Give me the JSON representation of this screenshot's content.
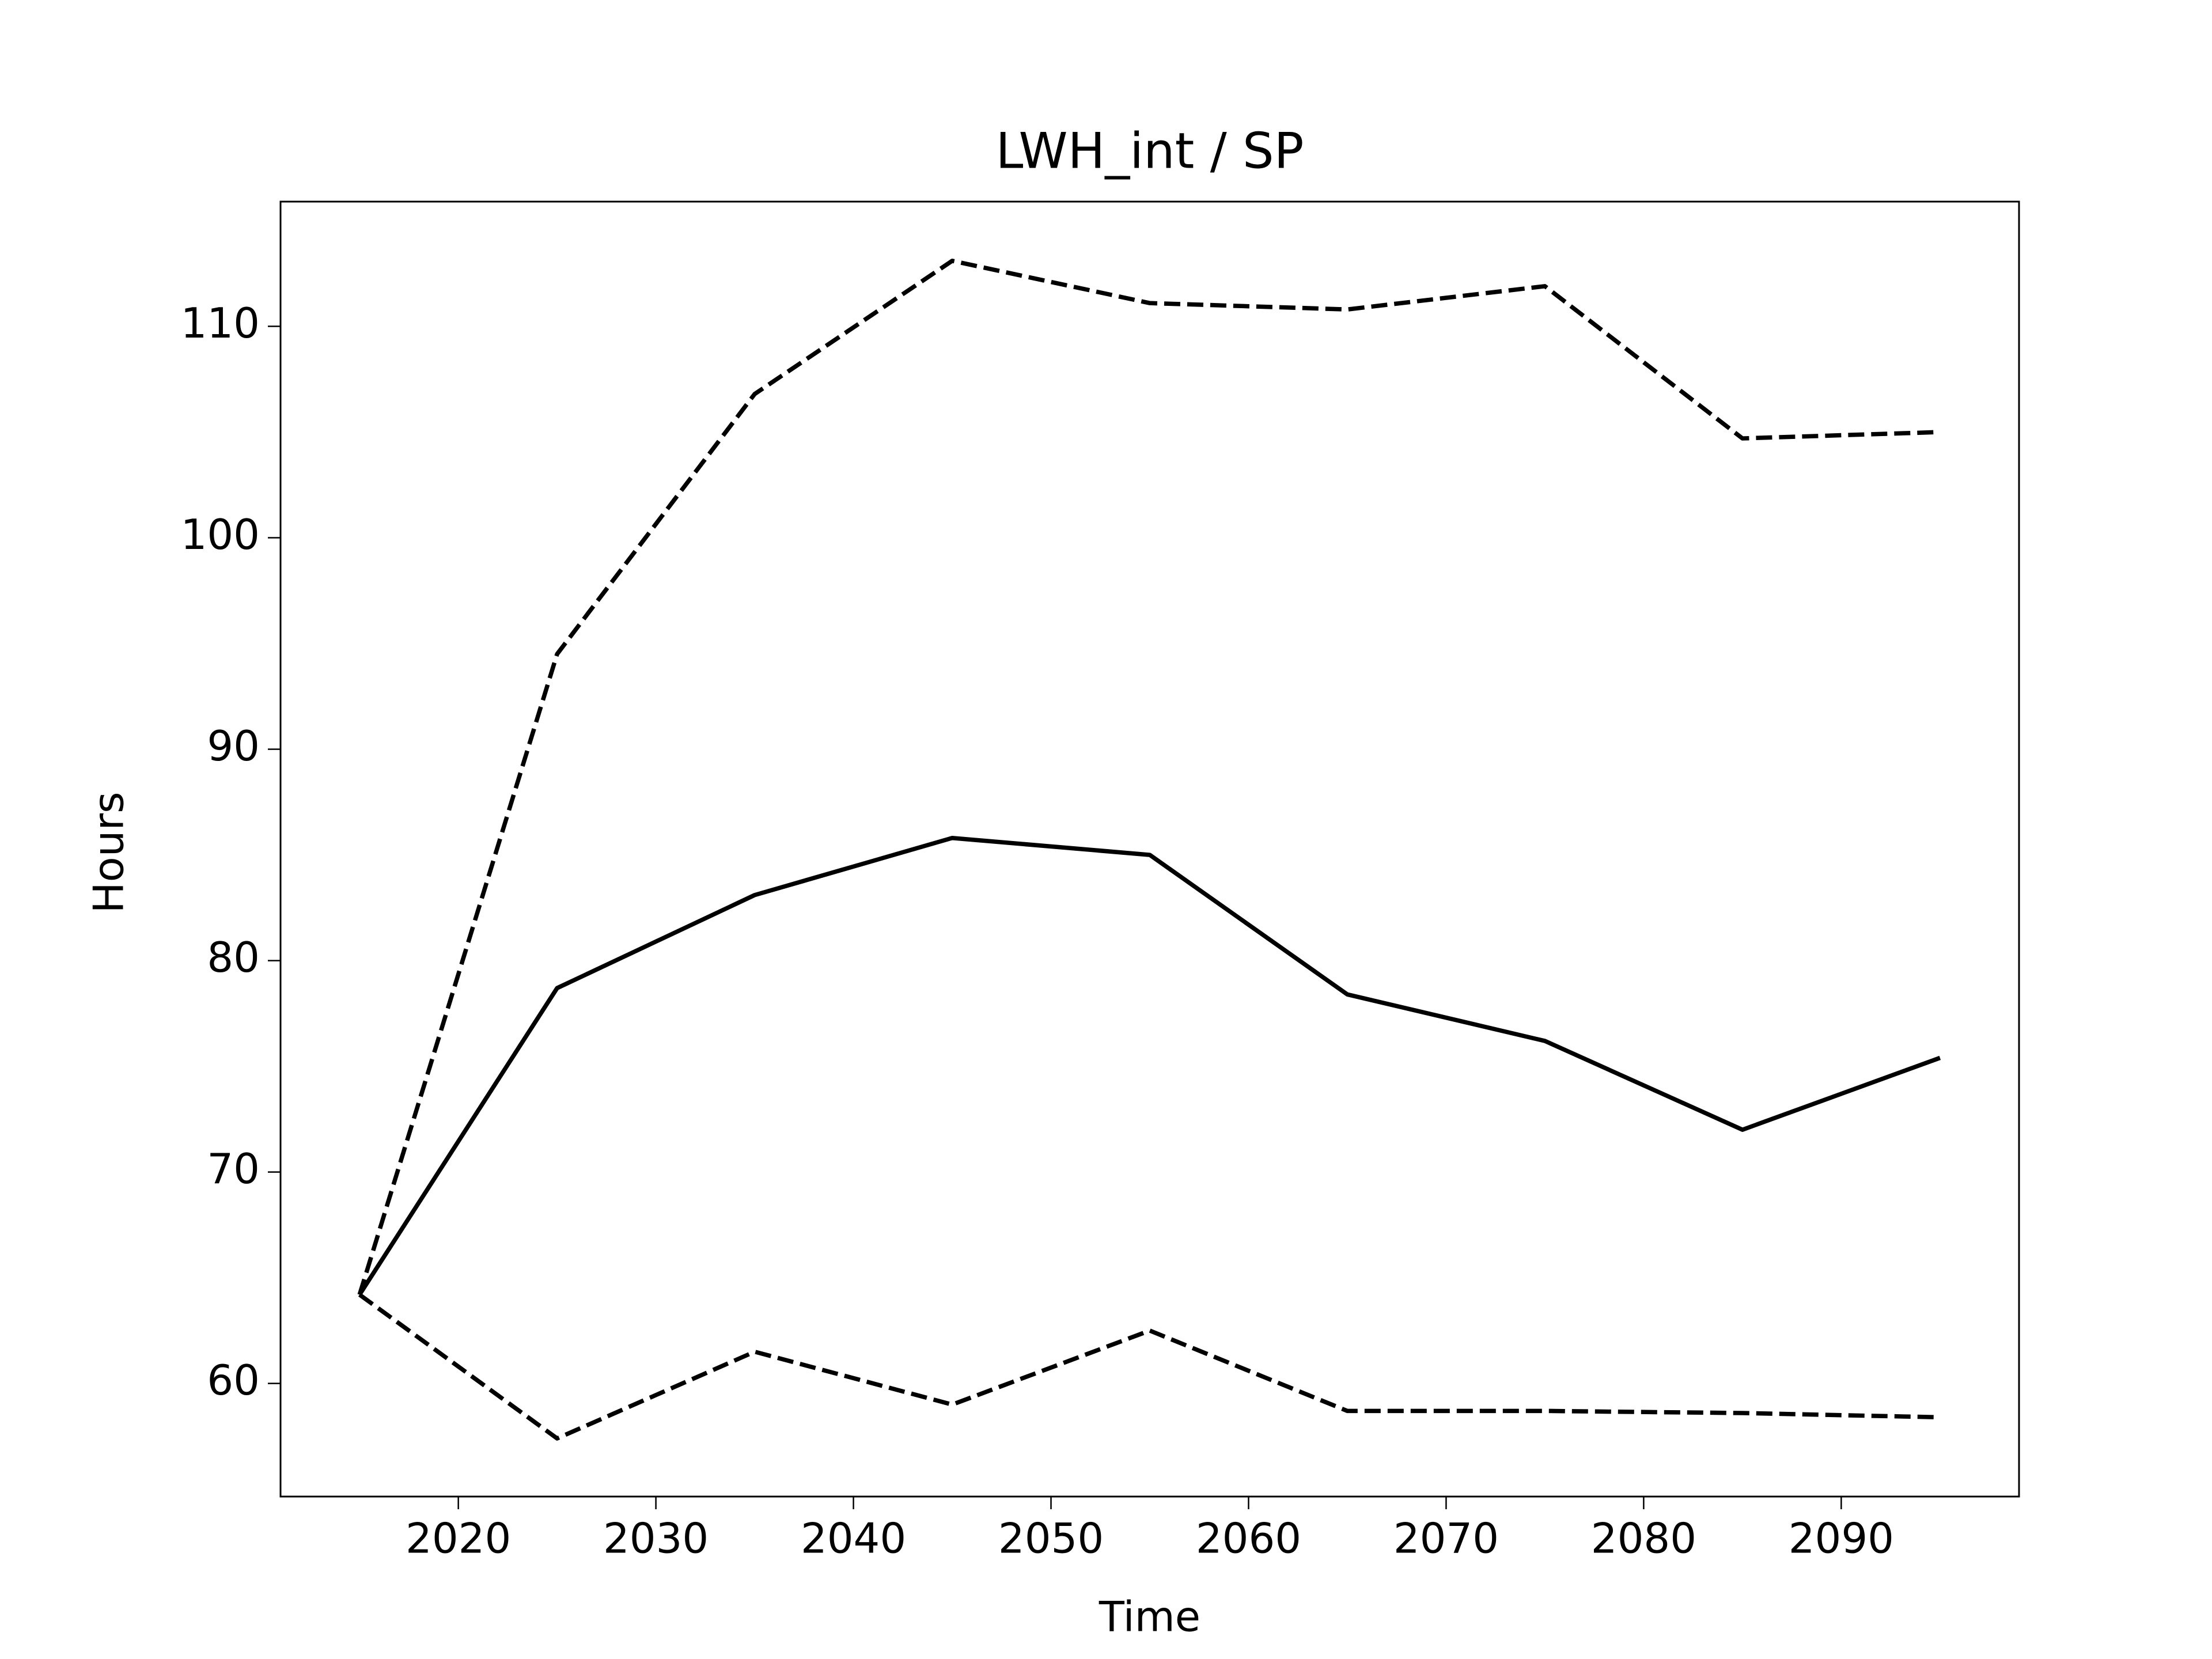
{
  "chart_data": {
    "type": "line",
    "title": "LWH_int / SP",
    "xlabel": "Time",
    "ylabel": "Hours",
    "x": [
      2015,
      2025,
      2035,
      2045,
      2055,
      2065,
      2075,
      2085,
      2095
    ],
    "series": [
      {
        "color": "#000000",
        "style": "solid",
        "values": [
          64.2,
          78.7,
          83.1,
          85.8,
          85.0,
          78.4,
          76.2,
          72.0,
          75.4
        ]
      },
      {
        "color": "#000000",
        "style": "dashed",
        "values": [
          64.2,
          94.5,
          106.8,
          113.1,
          111.1,
          110.8,
          111.9,
          104.7,
          105.0
        ]
      },
      {
        "color": "#000000",
        "style": "dashed",
        "values": [
          64.2,
          57.4,
          61.5,
          59.0,
          62.5,
          58.7,
          58.7,
          58.6,
          58.4
        ]
      }
    ],
    "xlim": [
      2011,
      2099
    ],
    "xticks": [
      2020,
      2030,
      2040,
      2050,
      2060,
      2070,
      2080,
      2090
    ],
    "ylim": [
      54.65,
      115.9
    ],
    "yticks": [
      60,
      70,
      80,
      90,
      100,
      110
    ],
    "grid": false
  }
}
